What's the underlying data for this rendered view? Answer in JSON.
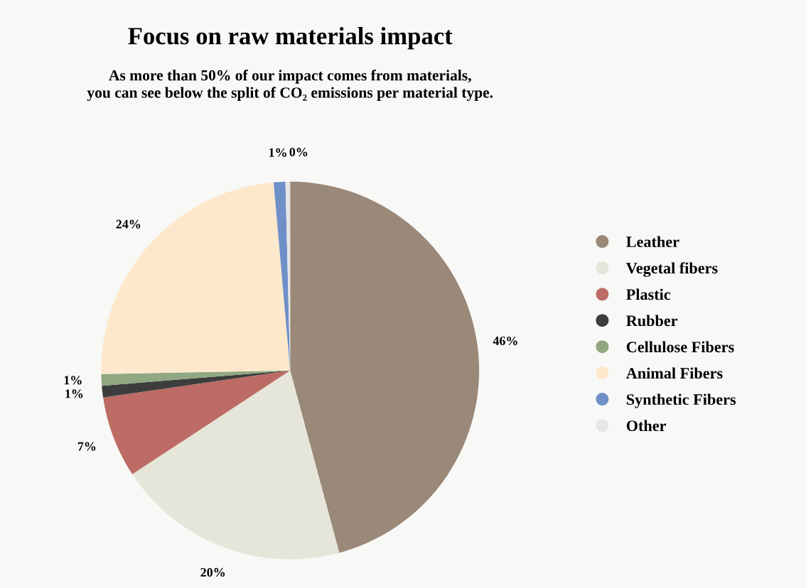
{
  "chart_data": {
    "type": "pie",
    "title": "Focus on raw materials impact",
    "subtitle": "As more than 50% of our impact comes from materials,\nyou can see below the split of CO₂ emissions per material type.",
    "categories": [
      "Leather",
      "Vegetal fibers",
      "Plastic",
      "Rubber",
      "Cellulose Fibers",
      "Animal Fibers",
      "Synthetic Fibers",
      "Other"
    ],
    "values": [
      46,
      20,
      7,
      1,
      1,
      24,
      1,
      0.4
    ],
    "value_labels": [
      "46%",
      "20%",
      "7%",
      "1%",
      "1%",
      "24%",
      "1%",
      "0%"
    ],
    "colors": [
      "#9a8878",
      "#e6e5da",
      "#bd6b65",
      "#3d3d3d",
      "#8fa882",
      "#fde8cc",
      "#6f8fc8",
      "#e6e6e6"
    ],
    "legend": "right"
  }
}
